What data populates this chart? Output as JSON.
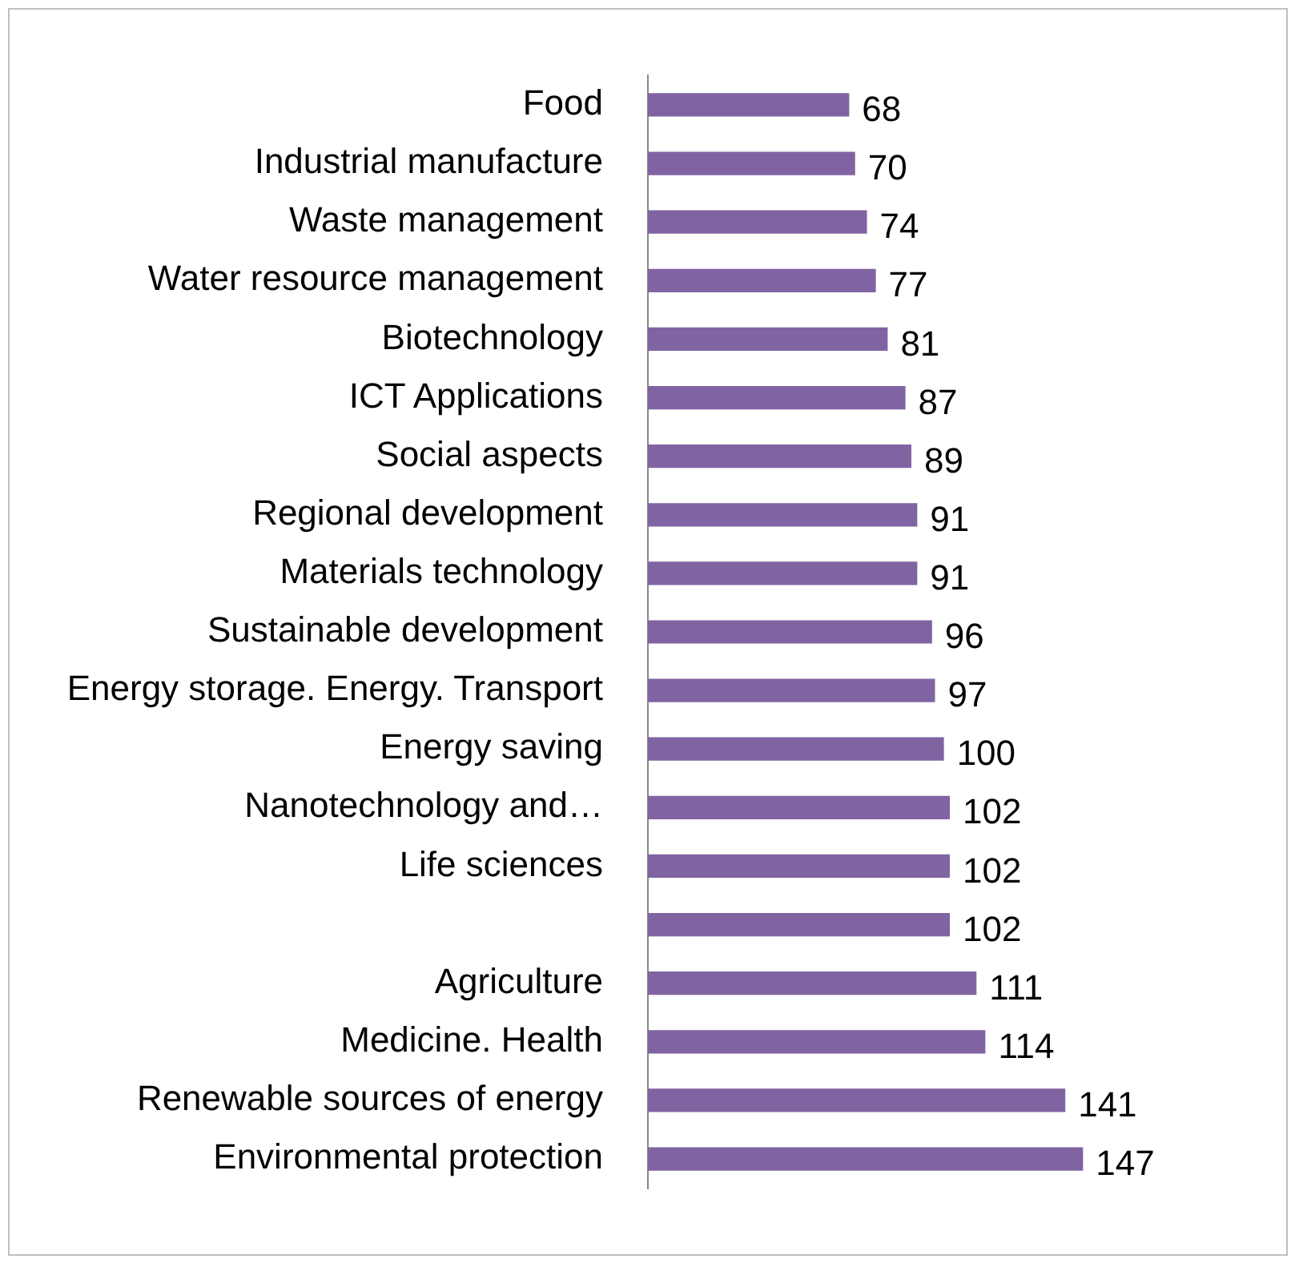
{
  "chart_data": {
    "type": "bar",
    "orientation": "horizontal",
    "data_labels": true,
    "categories": [
      "Food",
      "Industrial manufacture",
      "Waste management",
      "Water resource management",
      "Biotechnology",
      "ICT Applications",
      "Social aspects",
      "Regional development",
      "Materials technology",
      "Sustainable development",
      "Energy storage. Energy. Transport",
      "Energy saving",
      "Nanotechnology and…",
      "Life sciences",
      null,
      "Agriculture",
      "Medicine. Health",
      "Renewable sources of energy",
      "Environmental protection"
    ],
    "values": [
      68,
      70,
      74,
      77,
      81,
      87,
      89,
      91,
      91,
      96,
      97,
      100,
      102,
      102,
      102,
      111,
      114,
      141,
      147
    ],
    "color": "#8064a2"
  }
}
